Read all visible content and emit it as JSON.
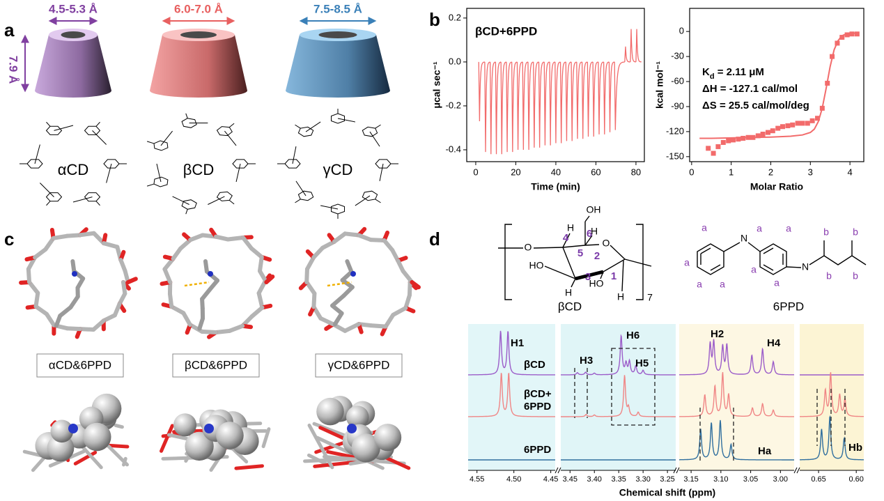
{
  "panel_a": {
    "label": "a",
    "height_label": "7.9 Å",
    "cones": [
      {
        "width_label": "4.5-5.3 Å",
        "name": "αCD"
      },
      {
        "width_label": "6.0-7.0 Å",
        "name": "βCD"
      },
      {
        "width_label": "7.5-8.5 Å",
        "name": "γCD"
      }
    ]
  },
  "panel_b": {
    "label": "b",
    "charts": [
      {
        "type": "spike",
        "title": "βCD+6PPD",
        "x_label": "Time (min)",
        "y_label": "μcal sec⁻¹",
        "color": "#f26b6b",
        "xlim": [
          -4.5,
          84.2
        ],
        "ylim": [
          -0.454,
          0.244
        ],
        "xticks": [
          0,
          20,
          40,
          60,
          80
        ],
        "yticks": [
          0.2,
          {
            "value": 0,
            "label": "0.0"
          },
          {
            "value": -0.2,
            "label": "-0.2"
          },
          {
            "value": -0.4,
            "label": "-0.4"
          }
        ],
        "x": [
          1.5,
          4.5,
          7.2,
          9.9,
          12.6,
          15.3,
          18,
          20.7,
          23.4,
          26.1,
          28.8,
          31.5,
          34.2,
          36.9,
          39.6,
          42.3,
          45,
          47.7,
          50.4,
          53.1,
          55.8,
          58.5,
          61.2,
          63.9,
          66.6,
          69.3,
          74.4,
          77.2,
          80
        ],
        "values": [
          -0.27,
          -0.41,
          -0.42,
          -0.42,
          -0.42,
          -0.41,
          -0.41,
          -0.4,
          -0.4,
          -0.4,
          -0.39,
          -0.39,
          -0.38,
          -0.38,
          -0.37,
          -0.37,
          -0.36,
          -0.36,
          -0.35,
          -0.35,
          -0.34,
          -0.34,
          -0.33,
          -0.33,
          -0.32,
          -0.31,
          0.07,
          0.15,
          0.15
        ]
      },
      {
        "type": "scatter",
        "x_label": "Molar Ratio",
        "y_label": "kcal mol⁻¹",
        "color": "#f26b6b",
        "annotations": [
          {
            "symbol": "K",
            "subscript": "d",
            "text": " = 2.11 μM"
          },
          {
            "text": "ΔH = -127.1 cal/mol"
          },
          {
            "text": "ΔS = 25.5 cal/mol/deg"
          }
        ],
        "xlim": [
          -0.05,
          4.35
        ],
        "ylim": [
          -156,
          27.7
        ],
        "xticks": [
          0,
          1,
          2,
          3,
          4
        ],
        "yticks": [
          0,
          -30,
          -60,
          -90,
          -120,
          -150
        ],
        "points": {
          "x": [
            0.42,
            0.55,
            0.67,
            0.8,
            0.93,
            1.05,
            1.18,
            1.3,
            1.43,
            1.55,
            1.68,
            1.8,
            1.93,
            2.05,
            2.18,
            2.3,
            2.43,
            2.55,
            2.68,
            2.8,
            2.93,
            3.05,
            3.18,
            3.3,
            3.43,
            3.55,
            3.68,
            3.8,
            3.93,
            4.05,
            4.18
          ],
          "values": [
            -140,
            -146,
            -138,
            -133,
            -131,
            -130,
            -129,
            -128,
            -127,
            -127,
            -125,
            -123,
            -121,
            -119,
            -116,
            -114,
            -113,
            -112,
            -110,
            -110,
            -110,
            -107,
            -104,
            -92,
            -62,
            -30,
            -14,
            -7,
            -4,
            -3,
            -3
          ]
        },
        "fit": {
          "x": [
            0.2,
            0.5,
            1,
            1.5,
            2,
            2.5,
            2.8,
            3,
            3.1,
            3.2,
            3.3,
            3.4,
            3.5,
            3.6,
            3.7,
            3.8,
            3.9,
            4,
            4.2
          ],
          "values": [
            -128,
            -128,
            -127.5,
            -127,
            -126.5,
            -125.5,
            -124,
            -121,
            -117,
            -108,
            -92,
            -68,
            -42,
            -22,
            -11,
            -5,
            -3,
            -2,
            -2
          ]
        }
      }
    ]
  },
  "panel_c": {
    "label": "c",
    "complexes": [
      "αCD&6PPD",
      "βCD&6PPD",
      "γCD&6PPD"
    ]
  },
  "panel_d": {
    "label": "d",
    "bcd": {
      "atoms": [
        "O",
        "HO",
        "H",
        "OH",
        "O",
        "H",
        "HO",
        "H",
        "H"
      ],
      "numbers": [
        "1",
        "2",
        "3",
        "4",
        "5",
        "6"
      ],
      "repeat": "7",
      "name": "βCD"
    },
    "ppd": {
      "atoms": [
        "N",
        "N"
      ],
      "protons": [
        "a",
        "a",
        "a",
        "a",
        "a",
        "a",
        "a",
        "a",
        "b",
        "b",
        "b",
        "b"
      ],
      "name": "6PPD"
    },
    "nmr": {
      "x_label": "Chemical shift (ppm)",
      "segments": [
        {
          "background": "#e2f6f8",
          "xlim": [
            4.562,
            4.444
          ],
          "ticks": [
            {
              "value": 4.55,
              "label": "4.55"
            },
            {
              "value": 4.5,
              "label": "4.50"
            },
            {
              "value": 4.45,
              "label": "4.45"
            }
          ]
        },
        {
          "background": "#e0f5f7",
          "xlim": [
            3.469,
            3.233
          ],
          "ticks": [
            {
              "value": 3.45,
              "label": "3.45"
            },
            {
              "value": 3.4,
              "label": "3.40"
            },
            {
              "value": 3.35,
              "label": "3.35"
            },
            {
              "value": 3.3,
              "label": "3.30"
            },
            {
              "value": 3.25,
              "label": "3.25"
            }
          ]
        },
        {
          "background": "#fdf7e3",
          "xlim": [
            3.17,
            2.977
          ],
          "ticks": [
            {
              "value": 3.15,
              "label": "3.15"
            },
            {
              "value": 3.1,
              "label": "3.10"
            },
            {
              "value": 3.05,
              "label": "3.05"
            },
            {
              "value": 3,
              "label": "3.00"
            }
          ]
        },
        {
          "background": "#fcf4d4",
          "xlim": [
            0.675,
            0.59
          ],
          "ticks": [
            {
              "value": 0.65,
              "label": "0.65"
            },
            {
              "value": 0.6,
              "label": "0.60"
            }
          ]
        }
      ],
      "spectra": [
        {
          "label_lines": [
            "βCD"
          ],
          "color": "#9b5cc9",
          "peaks": [
            {
              "ppm": 4.518,
              "height": 1
            },
            {
              "ppm": 4.508,
              "height": 1
            },
            {
              "ppm": 3.435,
              "height": 0.05
            },
            {
              "ppm": 3.418,
              "height": 0.06
            },
            {
              "ppm": 3.4,
              "height": 0.04
            },
            {
              "ppm": 3.345,
              "height": 0.9
            },
            {
              "ppm": 3.335,
              "height": 0.25
            },
            {
              "ppm": 3.328,
              "height": 0.3
            },
            {
              "ppm": 3.315,
              "height": 0.2
            },
            {
              "ppm": 3.3,
              "height": 0.1
            },
            {
              "ppm": 3.118,
              "height": 0.7
            },
            {
              "ppm": 3.112,
              "height": 0.75
            },
            {
              "ppm": 3.097,
              "height": 0.65
            },
            {
              "ppm": 3.09,
              "height": 0.68
            },
            {
              "ppm": 3.048,
              "height": 0.45
            },
            {
              "ppm": 3.03,
              "height": 0.6
            },
            {
              "ppm": 3.012,
              "height": 0.3
            }
          ]
        },
        {
          "label_lines": [
            "βCD+",
            "6PPD"
          ],
          "color": "#f08585",
          "peaks": [
            {
              "ppm": 4.517,
              "height": 1
            },
            {
              "ppm": 4.507,
              "height": 1
            },
            {
              "ppm": 3.417,
              "height": 0.05
            },
            {
              "ppm": 3.4,
              "height": 0.04
            },
            {
              "ppm": 3.338,
              "height": 0.95
            },
            {
              "ppm": 3.33,
              "height": 0.2
            },
            {
              "ppm": 3.31,
              "height": 0.1
            },
            {
              "ppm": 3.127,
              "height": 0.5
            },
            {
              "ppm": 3.11,
              "height": 0.7
            },
            {
              "ppm": 3.097,
              "height": 1
            },
            {
              "ppm": 3.087,
              "height": 0.5
            },
            {
              "ppm": 3.047,
              "height": 0.2
            },
            {
              "ppm": 3.03,
              "height": 0.3
            },
            {
              "ppm": 3.012,
              "height": 0.15
            },
            {
              "ppm": 0.641,
              "height": 0.6
            },
            {
              "ppm": 0.634,
              "height": 1
            },
            {
              "ppm": 0.622,
              "height": 0.5
            },
            {
              "ppm": 0.615,
              "height": 0.4
            }
          ]
        },
        {
          "label_lines": [
            "6PPD"
          ],
          "color": "#2f6e9e",
          "peaks": [
            {
              "ppm": 3.134,
              "height": 0.7
            },
            {
              "ppm": 3.116,
              "height": 0.85
            },
            {
              "ppm": 3.101,
              "height": 0.9
            },
            {
              "ppm": 3.083,
              "height": 0.35
            },
            {
              "ppm": 0.646,
              "height": 0.7
            },
            {
              "ppm": 0.635,
              "height": 1
            },
            {
              "ppm": 0.616,
              "height": 0.5
            }
          ]
        }
      ],
      "peak_labels": [
        "H1",
        "H3",
        "H6",
        "H5",
        "H2",
        "H4",
        "Ha",
        "Hb"
      ]
    }
  }
}
